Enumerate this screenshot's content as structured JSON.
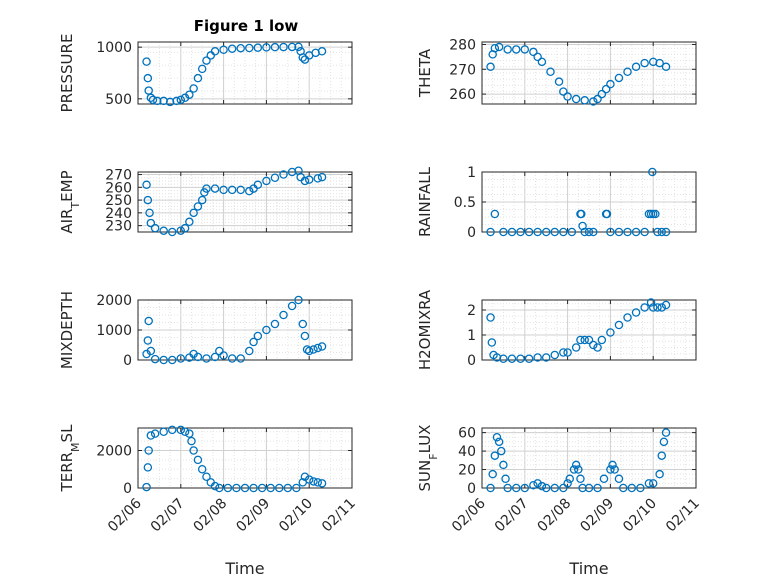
{
  "figure": {
    "title": "Figure 1 low"
  },
  "time_ticks": [
    "02/06",
    "02/07",
    "02/08",
    "02/09",
    "02/10",
    "02/11"
  ],
  "time_label": "Time",
  "marker_color": "#0072BD",
  "chart_data": [
    {
      "type": "scatter",
      "ylabel": "PRESSURE",
      "ylim": [
        450,
        1050
      ],
      "yticks": [
        500,
        1000
      ],
      "grid": true,
      "points": [
        [
          6.2,
          860
        ],
        [
          6.23,
          700
        ],
        [
          6.25,
          580
        ],
        [
          6.3,
          510
        ],
        [
          6.35,
          490
        ],
        [
          6.45,
          480
        ],
        [
          6.6,
          480
        ],
        [
          6.75,
          470
        ],
        [
          6.9,
          480
        ],
        [
          7.0,
          490
        ],
        [
          7.1,
          510
        ],
        [
          7.2,
          540
        ],
        [
          7.3,
          600
        ],
        [
          7.4,
          700
        ],
        [
          7.5,
          790
        ],
        [
          7.6,
          870
        ],
        [
          7.7,
          920
        ],
        [
          7.8,
          960
        ],
        [
          8.0,
          975
        ],
        [
          8.2,
          985
        ],
        [
          8.4,
          990
        ],
        [
          8.6,
          992
        ],
        [
          8.8,
          995
        ],
        [
          9.0,
          998
        ],
        [
          9.2,
          1000
        ],
        [
          9.4,
          1001
        ],
        [
          9.6,
          1002
        ],
        [
          9.75,
          1003
        ],
        [
          9.8,
          960
        ],
        [
          9.85,
          900
        ],
        [
          9.9,
          880
        ],
        [
          10.0,
          920
        ],
        [
          10.15,
          945
        ],
        [
          10.3,
          960
        ]
      ]
    },
    {
      "type": "scatter",
      "ylabel": "THETA",
      "ylim": [
        256,
        281
      ],
      "yticks": [
        260,
        270,
        280
      ],
      "grid": true,
      "points": [
        [
          6.2,
          271
        ],
        [
          6.25,
          276
        ],
        [
          6.3,
          278.5
        ],
        [
          6.4,
          279
        ],
        [
          6.6,
          278
        ],
        [
          6.8,
          278
        ],
        [
          7.0,
          278
        ],
        [
          7.2,
          277
        ],
        [
          7.3,
          275
        ],
        [
          7.4,
          273
        ],
        [
          7.6,
          269
        ],
        [
          7.8,
          265
        ],
        [
          7.9,
          261
        ],
        [
          8.0,
          259
        ],
        [
          8.2,
          258
        ],
        [
          8.4,
          257.5
        ],
        [
          8.6,
          257
        ],
        [
          8.7,
          258
        ],
        [
          8.8,
          260
        ],
        [
          8.9,
          262
        ],
        [
          9.0,
          264
        ],
        [
          9.2,
          266.5
        ],
        [
          9.4,
          269
        ],
        [
          9.6,
          271
        ],
        [
          9.8,
          272.5
        ],
        [
          10.0,
          273
        ],
        [
          10.15,
          272.5
        ],
        [
          10.3,
          271
        ]
      ]
    },
    {
      "type": "scatter",
      "ylabel": "AIR_TEMP",
      "ylim": [
        225,
        272
      ],
      "yticks": [
        230,
        240,
        250,
        260,
        270
      ],
      "grid": true,
      "points": [
        [
          6.2,
          262
        ],
        [
          6.23,
          250
        ],
        [
          6.27,
          240
        ],
        [
          6.3,
          232
        ],
        [
          6.4,
          228
        ],
        [
          6.6,
          226
        ],
        [
          6.8,
          225
        ],
        [
          7.0,
          226
        ],
        [
          7.1,
          228
        ],
        [
          7.2,
          233
        ],
        [
          7.3,
          240
        ],
        [
          7.4,
          245
        ],
        [
          7.5,
          250
        ],
        [
          7.55,
          256
        ],
        [
          7.6,
          259
        ],
        [
          7.8,
          259
        ],
        [
          8.0,
          258
        ],
        [
          8.2,
          258
        ],
        [
          8.4,
          258
        ],
        [
          8.6,
          257
        ],
        [
          8.7,
          259
        ],
        [
          8.8,
          262
        ],
        [
          9.0,
          265
        ],
        [
          9.2,
          267.5
        ],
        [
          9.4,
          270
        ],
        [
          9.6,
          272
        ],
        [
          9.75,
          273
        ],
        [
          9.8,
          268
        ],
        [
          9.9,
          265
        ],
        [
          10.0,
          266
        ],
        [
          10.2,
          267
        ],
        [
          10.3,
          268
        ]
      ]
    },
    {
      "type": "scatter",
      "ylabel": "RAINFALL",
      "ylim": [
        0,
        1
      ],
      "yticks": [
        0,
        0.5,
        1
      ],
      "grid": true,
      "points": [
        [
          6.2,
          0
        ],
        [
          6.3,
          0.3
        ],
        [
          6.5,
          0
        ],
        [
          6.7,
          0
        ],
        [
          6.9,
          0
        ],
        [
          7.1,
          0
        ],
        [
          7.3,
          0
        ],
        [
          7.5,
          0
        ],
        [
          7.7,
          0
        ],
        [
          7.9,
          0
        ],
        [
          8.1,
          0
        ],
        [
          8.3,
          0.3
        ],
        [
          8.32,
          0.3
        ],
        [
          8.35,
          0.1
        ],
        [
          8.4,
          0
        ],
        [
          8.5,
          0
        ],
        [
          8.6,
          0
        ],
        [
          8.9,
          0.3
        ],
        [
          8.92,
          0.3
        ],
        [
          9.0,
          0
        ],
        [
          9.2,
          0
        ],
        [
          9.4,
          0
        ],
        [
          9.6,
          0
        ],
        [
          9.8,
          0
        ],
        [
          9.9,
          0.3
        ],
        [
          9.95,
          0.3
        ],
        [
          9.98,
          1.0
        ],
        [
          10.0,
          0.3
        ],
        [
          10.05,
          0.3
        ],
        [
          10.1,
          0
        ],
        [
          10.2,
          0
        ],
        [
          10.3,
          0
        ]
      ]
    },
    {
      "type": "scatter",
      "ylabel": "MIXDEPTH",
      "ylim": [
        0,
        2000
      ],
      "yticks": [
        0,
        1000,
        2000
      ],
      "grid": true,
      "points": [
        [
          6.2,
          200
        ],
        [
          6.23,
          650
        ],
        [
          6.25,
          1300
        ],
        [
          6.3,
          300
        ],
        [
          6.4,
          30
        ],
        [
          6.6,
          0
        ],
        [
          6.8,
          0
        ],
        [
          7.0,
          50
        ],
        [
          7.2,
          80
        ],
        [
          7.3,
          200
        ],
        [
          7.4,
          100
        ],
        [
          7.6,
          50
        ],
        [
          7.8,
          100
        ],
        [
          7.9,
          300
        ],
        [
          8.0,
          150
        ],
        [
          8.2,
          50
        ],
        [
          8.4,
          50
        ],
        [
          8.6,
          300
        ],
        [
          8.7,
          600
        ],
        [
          8.8,
          800
        ],
        [
          9.0,
          1000
        ],
        [
          9.2,
          1200
        ],
        [
          9.4,
          1500
        ],
        [
          9.6,
          1800
        ],
        [
          9.75,
          2000
        ],
        [
          9.85,
          1200
        ],
        [
          9.9,
          800
        ],
        [
          9.95,
          350
        ],
        [
          10.0,
          300
        ],
        [
          10.1,
          350
        ],
        [
          10.2,
          400
        ],
        [
          10.3,
          450
        ]
      ]
    },
    {
      "type": "scatter",
      "ylabel": "H2OMIXRA",
      "ylim": [
        0,
        2.4
      ],
      "yticks": [
        0,
        1,
        2
      ],
      "grid": true,
      "points": [
        [
          6.2,
          1.7
        ],
        [
          6.23,
          0.7
        ],
        [
          6.27,
          0.2
        ],
        [
          6.35,
          0.1
        ],
        [
          6.5,
          0.05
        ],
        [
          6.7,
          0.05
        ],
        [
          6.9,
          0.05
        ],
        [
          7.1,
          0.05
        ],
        [
          7.3,
          0.1
        ],
        [
          7.5,
          0.1
        ],
        [
          7.7,
          0.2
        ],
        [
          7.9,
          0.3
        ],
        [
          8.0,
          0.3
        ],
        [
          8.2,
          0.5
        ],
        [
          8.3,
          0.8
        ],
        [
          8.4,
          0.8
        ],
        [
          8.5,
          0.8
        ],
        [
          8.6,
          0.6
        ],
        [
          8.7,
          0.5
        ],
        [
          8.8,
          0.8
        ],
        [
          9.0,
          1.1
        ],
        [
          9.2,
          1.4
        ],
        [
          9.4,
          1.7
        ],
        [
          9.6,
          1.9
        ],
        [
          9.8,
          2.1
        ],
        [
          9.95,
          2.3
        ],
        [
          10.0,
          2.1
        ],
        [
          10.1,
          2.1
        ],
        [
          10.2,
          2.1
        ],
        [
          10.3,
          2.2
        ]
      ]
    },
    {
      "type": "scatter",
      "ylabel": "TERR_MSL",
      "ylim": [
        0,
        3200
      ],
      "yticks": [
        0,
        2000
      ],
      "grid": true,
      "points": [
        [
          6.2,
          50
        ],
        [
          6.23,
          1100
        ],
        [
          6.25,
          2000
        ],
        [
          6.3,
          2800
        ],
        [
          6.4,
          2900
        ],
        [
          6.6,
          3000
        ],
        [
          6.8,
          3100
        ],
        [
          7.0,
          3100
        ],
        [
          7.1,
          3000
        ],
        [
          7.2,
          2900
        ],
        [
          7.25,
          2500
        ],
        [
          7.3,
          2000
        ],
        [
          7.4,
          1500
        ],
        [
          7.5,
          1000
        ],
        [
          7.6,
          600
        ],
        [
          7.7,
          300
        ],
        [
          7.8,
          100
        ],
        [
          7.9,
          0
        ],
        [
          8.1,
          0
        ],
        [
          8.3,
          0
        ],
        [
          8.5,
          0
        ],
        [
          8.7,
          0
        ],
        [
          8.9,
          0
        ],
        [
          9.1,
          0
        ],
        [
          9.3,
          0
        ],
        [
          9.5,
          0
        ],
        [
          9.7,
          0
        ],
        [
          9.85,
          300
        ],
        [
          9.9,
          600
        ],
        [
          10.0,
          450
        ],
        [
          10.1,
          350
        ],
        [
          10.2,
          300
        ],
        [
          10.3,
          250
        ]
      ]
    },
    {
      "type": "scatter",
      "ylabel": "SUN_FLUX",
      "ylim": [
        0,
        65
      ],
      "yticks": [
        0,
        20,
        40,
        60
      ],
      "grid": true,
      "points": [
        [
          6.2,
          0
        ],
        [
          6.25,
          15
        ],
        [
          6.3,
          35
        ],
        [
          6.35,
          55
        ],
        [
          6.4,
          50
        ],
        [
          6.45,
          40
        ],
        [
          6.5,
          25
        ],
        [
          6.55,
          10
        ],
        [
          6.6,
          0
        ],
        [
          6.8,
          0
        ],
        [
          7.0,
          0
        ],
        [
          7.2,
          3
        ],
        [
          7.3,
          5
        ],
        [
          7.4,
          2
        ],
        [
          7.5,
          0
        ],
        [
          7.7,
          0
        ],
        [
          7.9,
          0
        ],
        [
          8.0,
          5
        ],
        [
          8.05,
          10
        ],
        [
          8.15,
          20
        ],
        [
          8.2,
          25
        ],
        [
          8.25,
          20
        ],
        [
          8.3,
          10
        ],
        [
          8.35,
          0
        ],
        [
          8.5,
          0
        ],
        [
          8.7,
          0
        ],
        [
          8.85,
          10
        ],
        [
          9.0,
          20
        ],
        [
          9.05,
          25
        ],
        [
          9.1,
          20
        ],
        [
          9.2,
          10
        ],
        [
          9.3,
          0
        ],
        [
          9.5,
          0
        ],
        [
          9.7,
          0
        ],
        [
          9.9,
          5
        ],
        [
          10.0,
          5
        ],
        [
          10.15,
          15
        ],
        [
          10.2,
          35
        ],
        [
          10.25,
          50
        ],
        [
          10.3,
          60
        ]
      ]
    }
  ]
}
